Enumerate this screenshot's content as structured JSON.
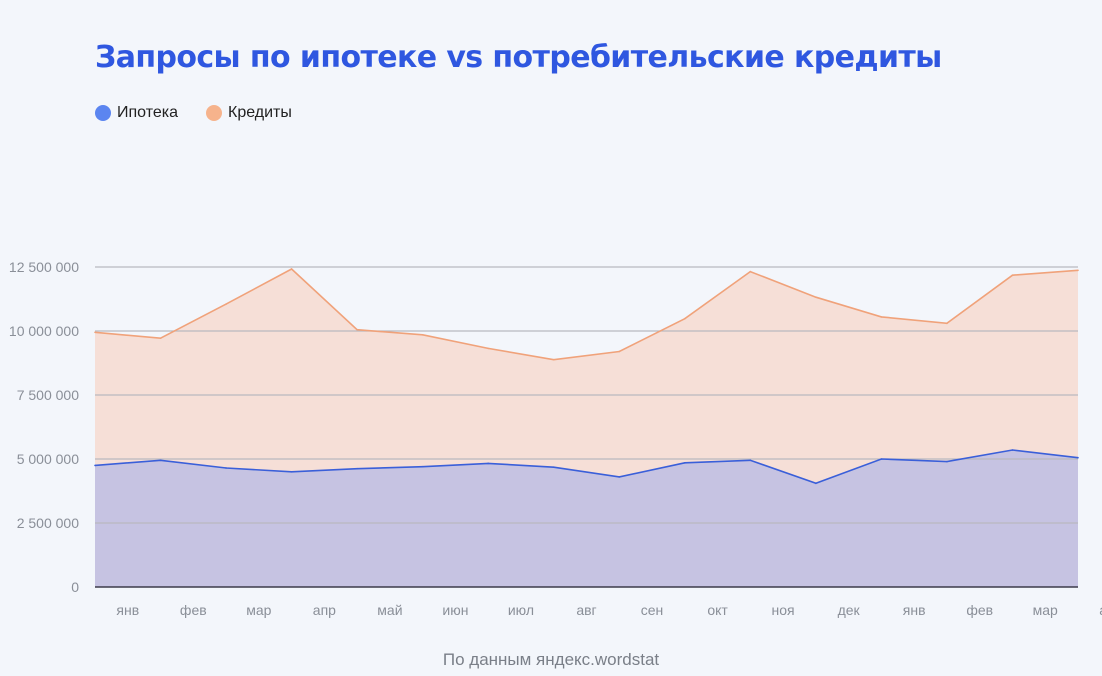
{
  "chart_data": {
    "type": "area",
    "title": "Запросы по ипотеке vs потребительские кредиты",
    "source": "По данным яндекс.wordstat",
    "categories": [
      "янв",
      "фев",
      "мар",
      "апр",
      "май",
      "июн",
      "июл",
      "авг",
      "сен",
      "окт",
      "ноя",
      "дек",
      "янв",
      "фев",
      "мар",
      "апр"
    ],
    "ylim": [
      0,
      12500000
    ],
    "yticks": [
      0,
      2500000,
      5000000,
      7500000,
      10000000,
      12500000
    ],
    "ytick_labels": [
      "0",
      "2 500 000",
      "5 000 000",
      "7 500 000",
      "10 000 000",
      "12 500 000"
    ],
    "grid": true,
    "legend_position": "top-left",
    "series": [
      {
        "name": "Ипотека",
        "color": "#5b85f0",
        "line_color": "#3a5fd9",
        "fill": "#c6c3e2",
        "values": [
          4750000,
          4950000,
          4650000,
          4500000,
          4620000,
          4700000,
          4830000,
          4680000,
          4300000,
          4850000,
          4950000,
          4050000,
          5000000,
          4900000,
          5350000,
          5050000
        ]
      },
      {
        "name": "Кредиты",
        "color": "#f6b38c",
        "line_color": "#f0a27a",
        "fill": "#f6dfd7",
        "values": [
          9950000,
          9720000,
          11050000,
          12420000,
          10050000,
          9850000,
          9320000,
          8880000,
          9200000,
          10480000,
          12320000,
          11320000,
          10550000,
          10300000,
          12180000,
          12370000
        ]
      }
    ]
  }
}
